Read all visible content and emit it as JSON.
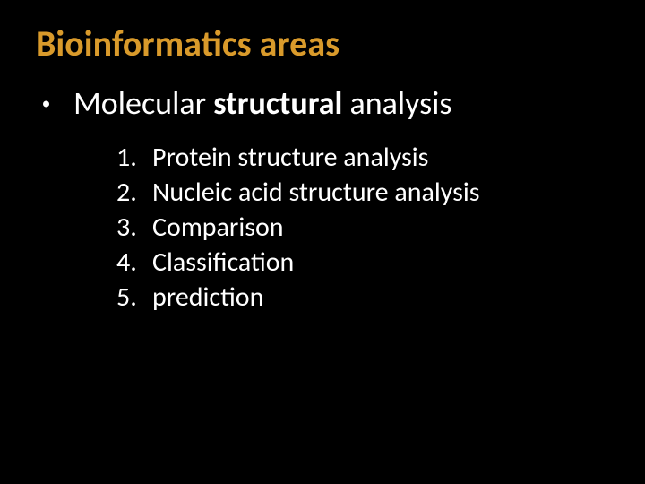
{
  "slide": {
    "background_color": "#000000",
    "title": {
      "text": "Bioinformatics areas",
      "color": "#d99a2b",
      "fontsize": 40,
      "weight": 700
    },
    "main_bullet": {
      "pre": "Molecular ",
      "bold": "structural",
      "post": " analysis",
      "color": "#ffffff",
      "fontsize": 36,
      "bullet_size": 7,
      "bullet_color": "#ffffff"
    },
    "sub_list": {
      "color": "#ffffff",
      "fontsize": 30,
      "items": [
        {
          "n": "1.",
          "text": "Protein structure analysis"
        },
        {
          "n": "2.",
          "text": "Nucleic acid structure analysis"
        },
        {
          "n": "3.",
          "text": "Comparison"
        },
        {
          "n": "4.",
          "text": "Classification"
        },
        {
          "n": "5.",
          "text": "prediction"
        }
      ]
    }
  }
}
